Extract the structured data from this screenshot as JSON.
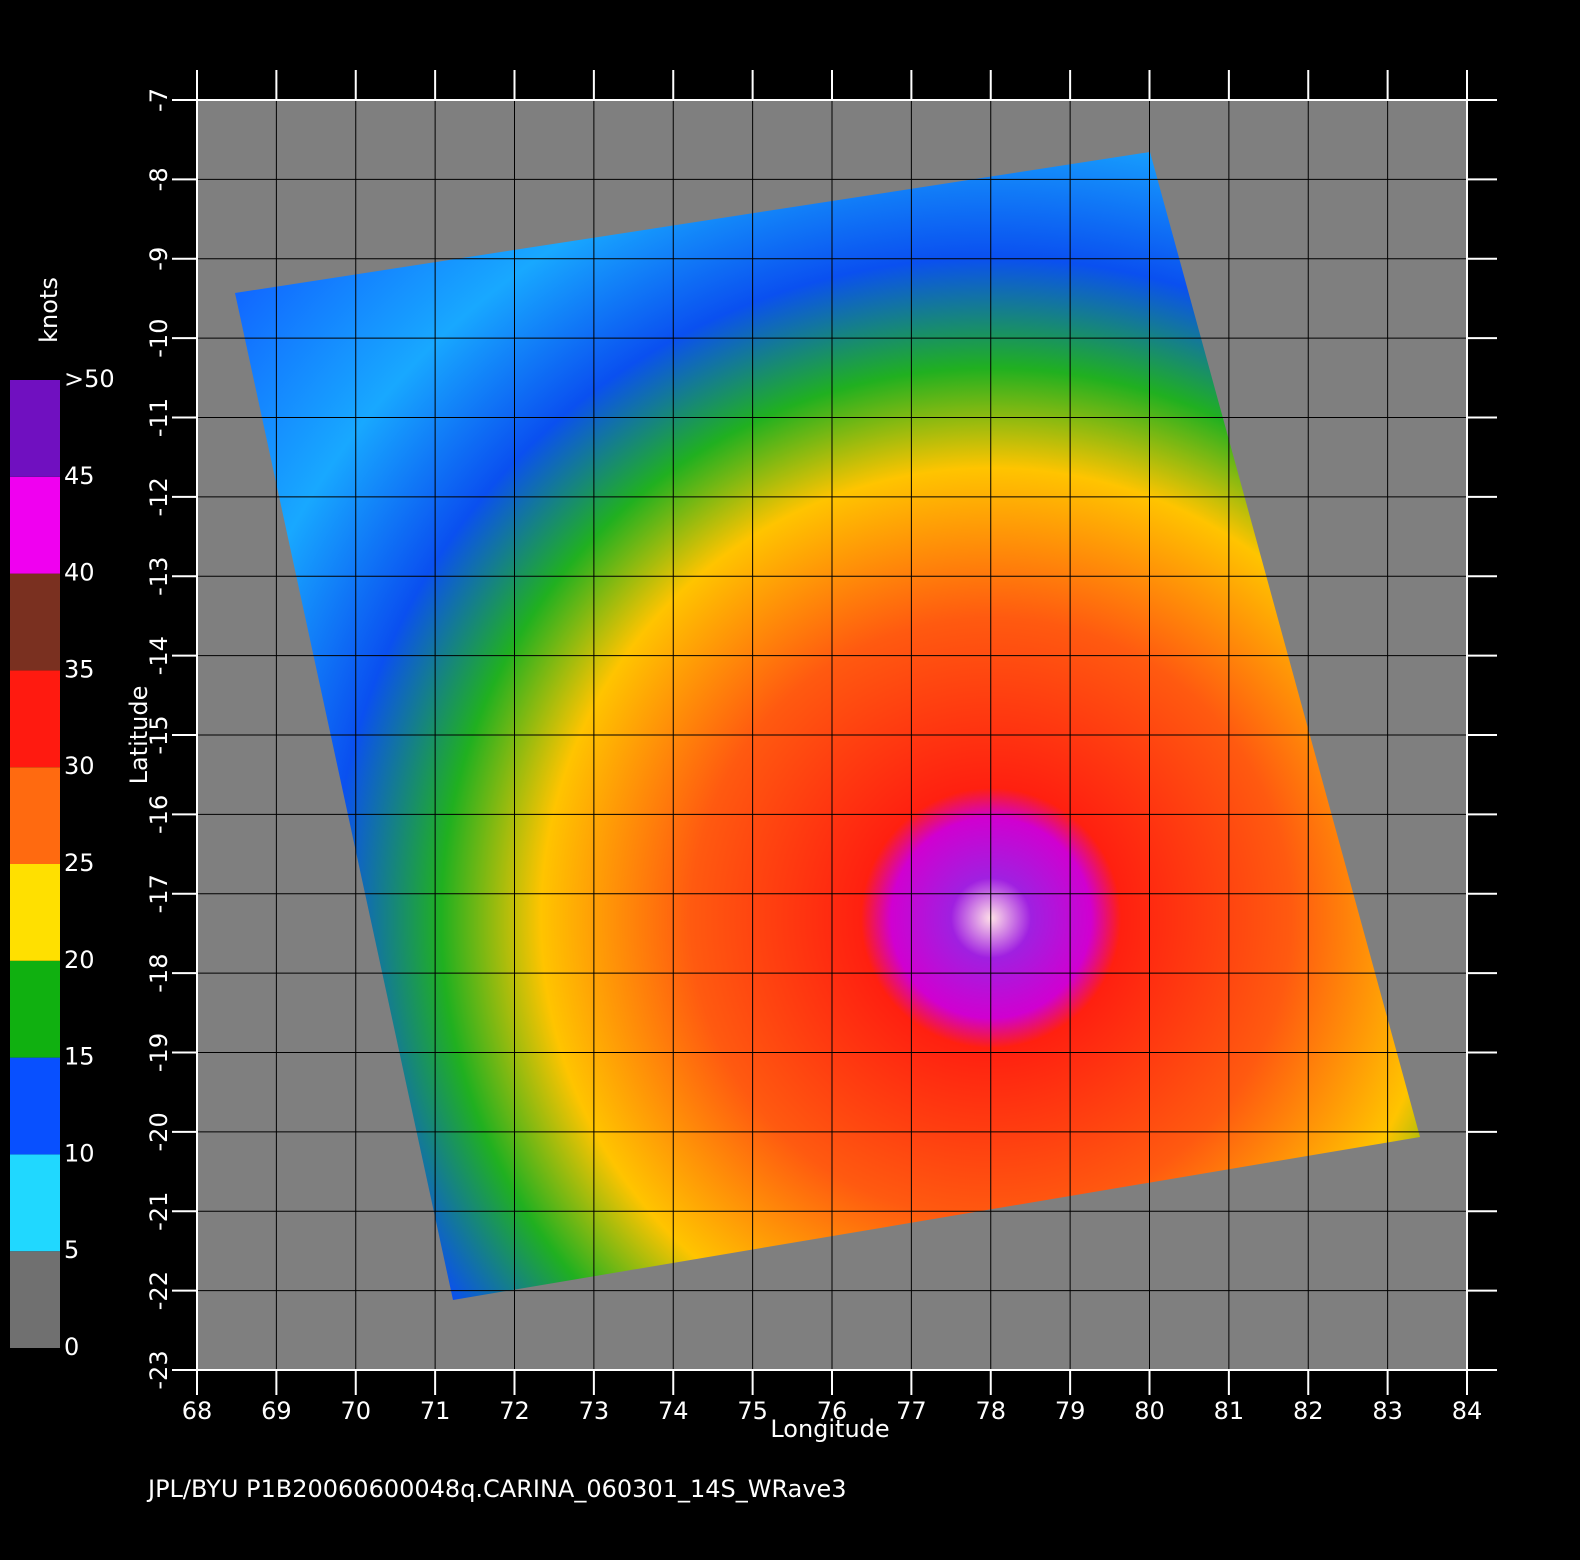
{
  "chart_data": {
    "type": "map",
    "xlabel": "Longitude",
    "ylabel": "Latitude",
    "caption": "JPL/BYU  P1B20060600048q.CARINA_060301_14S_WRave3",
    "xlim": [
      68,
      84
    ],
    "ylim": [
      -23,
      -7
    ],
    "xticks": [
      68,
      69,
      70,
      71,
      72,
      73,
      74,
      75,
      76,
      77,
      78,
      79,
      80,
      81,
      82,
      83,
      84
    ],
    "yticks": [
      -7,
      -8,
      -9,
      -10,
      -11,
      -12,
      -13,
      -14,
      -15,
      -16,
      -17,
      -18,
      -19,
      -20,
      -21,
      -22,
      -23
    ],
    "grid": true,
    "colorbar": {
      "label": "knots",
      "clim": [
        0,
        50
      ],
      "ticks": [
        0,
        5,
        10,
        15,
        20,
        25,
        30,
        35,
        40,
        45,
        {
          "value": 50,
          "label": ">50"
        }
      ],
      "colors": [
        "#707070",
        "#20d8ff",
        "#0850ff",
        "#10b010",
        "#ffe000",
        "#ff6a10",
        "#ff1a10",
        "#7a3020",
        "#f000f0",
        "#7010c0"
      ]
    }
  }
}
